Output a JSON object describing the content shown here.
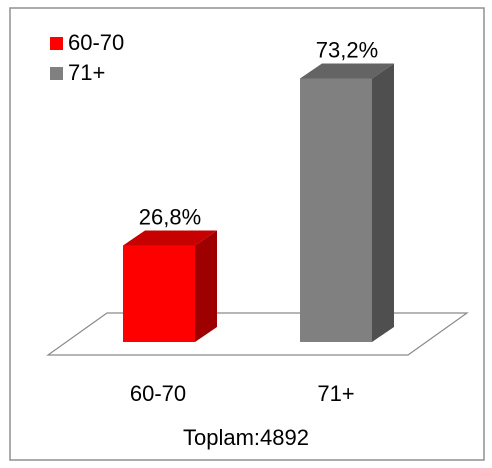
{
  "chart_data": {
    "type": "bar",
    "categories": [
      "60-70",
      "71+"
    ],
    "values": [
      26.8,
      73.2
    ],
    "value_labels": [
      "26,8%",
      "73,2%"
    ],
    "colors": [
      "#ff0000",
      "#808080"
    ],
    "legend": {
      "placement": "top-left",
      "entries": [
        "60-70",
        "71+"
      ]
    },
    "caption": "Toplam:4892",
    "ylim": [
      0,
      80
    ],
    "grid": false
  }
}
